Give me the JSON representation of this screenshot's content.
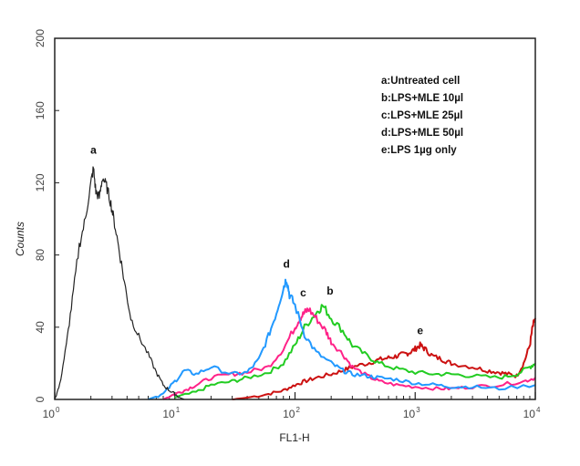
{
  "chart_data": {
    "type": "line",
    "xlabel": "FL1-H",
    "ylabel": "Counts",
    "xscale": "log",
    "xlim": [
      1,
      10000
    ],
    "ylim": [
      0,
      200
    ],
    "x_ticks": [
      {
        "base": "10",
        "exp": "0"
      },
      {
        "base": "10",
        "exp": "1"
      },
      {
        "base": "10",
        "exp": "2"
      },
      {
        "base": "10",
        "exp": "3"
      },
      {
        "base": "10",
        "exp": "4"
      }
    ],
    "y_ticks": [
      "0",
      "40",
      "80",
      "120",
      "160",
      "200"
    ],
    "y_tick_values": [
      0,
      40,
      80,
      120,
      160,
      200
    ],
    "legend": [
      "a:Untreated cell",
      "b:LPS+MLE 10µl",
      "c:LPS+MLE 25µl",
      "d:LPS+MLE 50µl",
      "e:LPS 1µg only"
    ],
    "legend_position": "top-right",
    "series": [
      {
        "label": "a",
        "color": "#222222",
        "x": [
          1.0,
          1.1,
          1.25,
          1.4,
          1.6,
          1.8,
          2.0,
          2.1,
          2.2,
          2.35,
          2.5,
          2.7,
          2.9,
          3.1,
          3.4,
          3.8,
          4.3,
          5.0,
          6.0,
          7.0,
          8.0,
          9.0,
          10.0,
          11.0,
          12.0
        ],
        "y": [
          0,
          8,
          30,
          55,
          85,
          100,
          120,
          128,
          115,
          112,
          123,
          118,
          110,
          100,
          85,
          65,
          45,
          35,
          25,
          15,
          8,
          5,
          3,
          1,
          0
        ]
      },
      {
        "label": "b",
        "color": "#22cc22",
        "x": [
          10,
          15,
          20,
          30,
          40,
          60,
          80,
          100,
          120,
          150,
          170,
          200,
          250,
          300,
          400,
          500,
          700,
          1000,
          1500,
          2000,
          3000,
          5000,
          7000,
          9000,
          10000
        ],
        "y": [
          1,
          4,
          8,
          10,
          12,
          15,
          20,
          30,
          40,
          48,
          52,
          45,
          38,
          30,
          24,
          20,
          17,
          15,
          14,
          14,
          13,
          12,
          14,
          18,
          20
        ]
      },
      {
        "label": "c",
        "color": "#ff2288",
        "x": [
          8,
          10,
          12,
          15,
          20,
          30,
          40,
          60,
          80,
          100,
          110,
          120,
          130,
          150,
          180,
          200,
          250,
          300,
          400,
          500,
          700,
          1000,
          1500,
          2000,
          3000,
          5000,
          8000,
          10000
        ],
        "y": [
          0,
          3,
          5,
          8,
          12,
          14,
          15,
          18,
          28,
          40,
          45,
          48,
          50,
          45,
          38,
          32,
          25,
          18,
          13,
          10,
          8,
          7,
          6,
          6,
          7,
          8,
          10,
          12
        ]
      },
      {
        "label": "d",
        "color": "#2299ff",
        "x": [
          6,
          8,
          10,
          12,
          15,
          20,
          30,
          40,
          50,
          60,
          70,
          80,
          85,
          90,
          100,
          120,
          150,
          200,
          250,
          300,
          400,
          500,
          700,
          1000,
          1500,
          2000,
          3000,
          5000,
          10000
        ],
        "y": [
          0,
          3,
          10,
          16,
          14,
          18,
          14,
          15,
          22,
          35,
          48,
          62,
          67,
          58,
          52,
          36,
          26,
          20,
          16,
          14,
          13,
          12,
          11,
          9,
          8,
          7,
          7,
          6,
          8
        ]
      },
      {
        "label": "e",
        "color": "#cc1111",
        "x": [
          30,
          40,
          60,
          80,
          100,
          120,
          150,
          200,
          250,
          300,
          400,
          500,
          600,
          700,
          800,
          900,
          1000,
          1100,
          1200,
          1400,
          1700,
          2000,
          3000,
          4000,
          5000,
          6000,
          7000,
          8000,
          9000,
          9500,
          10000
        ],
        "y": [
          0,
          1,
          3,
          5,
          8,
          10,
          12,
          14,
          16,
          18,
          20,
          22,
          23,
          24,
          25,
          26,
          28,
          30,
          28,
          24,
          22,
          20,
          18,
          16,
          15,
          14,
          13,
          20,
          30,
          40,
          45
        ]
      }
    ]
  }
}
